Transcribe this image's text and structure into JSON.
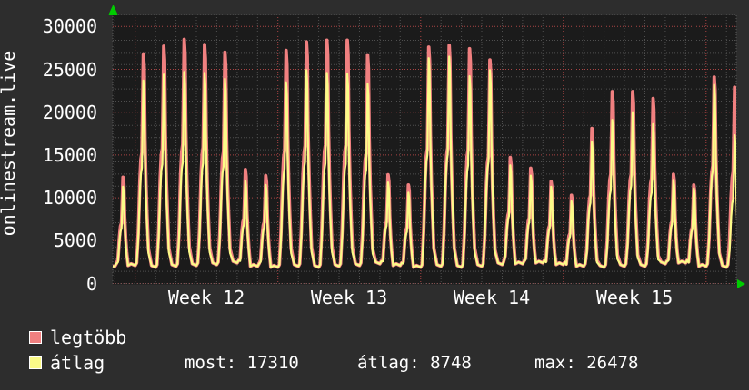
{
  "site_label": "onlinestream.live",
  "y_axis": {
    "ticks": [
      "30000",
      "25000",
      "20000",
      "15000",
      "10000",
      "5000",
      "0"
    ]
  },
  "x_axis": {
    "labels": [
      "Week 12",
      "Week 13",
      "Week 14",
      "Week 15"
    ]
  },
  "legend": {
    "series": [
      {
        "name": "legtöbb",
        "color": "#f08080"
      },
      {
        "name": "átlag",
        "color": "#fbfb88"
      }
    ],
    "stats": [
      {
        "label": "most:",
        "value": "17310"
      },
      {
        "label": "átlag:",
        "value": "8748"
      },
      {
        "label": "max:",
        "value": "26478"
      }
    ]
  },
  "colors": {
    "background": "#2d2d2d",
    "plot_background": "#1b1b1b",
    "grid_minor": "#4f4f4f",
    "grid_major": "#aa4444",
    "border": "#5a5a5a",
    "arrow_green": "#00cc00",
    "text": "#ffffff",
    "legtobb_line": "#f08080",
    "atlag_line": "#fbfb88"
  },
  "chart_data": {
    "type": "line",
    "title": "onlinestream.live",
    "ylim": [
      0,
      30000
    ],
    "y_major_step": 5000,
    "x_labels": [
      "Week 12",
      "Week 13",
      "Week 14",
      "Week 15"
    ],
    "days_per_week": 7,
    "legend_position": "bottom",
    "grid": true,
    "series_names": [
      "legtöbb",
      "átlag"
    ],
    "stats": {
      "most": 17310,
      "atlag": 8748,
      "max": 26478
    },
    "days": [
      {
        "valley": 2000,
        "legtobb": 12400,
        "atlag": 11300
      },
      {
        "valley": 2100,
        "legtobb": 26800,
        "atlag": 23700
      },
      {
        "valley": 1900,
        "legtobb": 27700,
        "atlag": 24400
      },
      {
        "valley": 2000,
        "legtobb": 28500,
        "atlag": 24700
      },
      {
        "valley": 2100,
        "legtobb": 27900,
        "atlag": 24600
      },
      {
        "valley": 2200,
        "legtobb": 27000,
        "atlag": 23900
      },
      {
        "valley": 2400,
        "legtobb": 13300,
        "atlag": 12000
      },
      {
        "valley": 2000,
        "legtobb": 12600,
        "atlag": 11500
      },
      {
        "valley": 1900,
        "legtobb": 27200,
        "atlag": 23500
      },
      {
        "valley": 2000,
        "legtobb": 28200,
        "atlag": 24900
      },
      {
        "valley": 1900,
        "legtobb": 28400,
        "atlag": 24600
      },
      {
        "valley": 2000,
        "legtobb": 28400,
        "atlag": 24500
      },
      {
        "valley": 2100,
        "legtobb": 26700,
        "atlag": 23300
      },
      {
        "valley": 2300,
        "legtobb": 12700,
        "atlag": 11800
      },
      {
        "valley": 2100,
        "legtobb": 11500,
        "atlag": 10600
      },
      {
        "valley": 1900,
        "legtobb": 27600,
        "atlag": 26300
      },
      {
        "valley": 2000,
        "legtobb": 27800,
        "atlag": 26478
      },
      {
        "valley": 1900,
        "legtobb": 27400,
        "atlag": 24200
      },
      {
        "valley": 2000,
        "legtobb": 26100,
        "atlag": 24900
      },
      {
        "valley": 2200,
        "legtobb": 14700,
        "atlag": 13800
      },
      {
        "valley": 2300,
        "legtobb": 13450,
        "atlag": 12600
      },
      {
        "valley": 2400,
        "legtobb": 11900,
        "atlag": 11300
      },
      {
        "valley": 2200,
        "legtobb": 10300,
        "atlag": 9600
      },
      {
        "valley": 2000,
        "legtobb": 18100,
        "atlag": 16500
      },
      {
        "valley": 1900,
        "legtobb": 22400,
        "atlag": 19100
      },
      {
        "valley": 2000,
        "legtobb": 22400,
        "atlag": 20000
      },
      {
        "valley": 2000,
        "legtobb": 21600,
        "atlag": 18600
      },
      {
        "valley": 2300,
        "legtobb": 12750,
        "atlag": 12100
      },
      {
        "valley": 2400,
        "legtobb": 11500,
        "atlag": 11100
      },
      {
        "valley": 2000,
        "legtobb": 24100,
        "atlag": 23200
      },
      {
        "valley": 1900,
        "legtobb": 22900,
        "atlag": 17310
      }
    ]
  }
}
